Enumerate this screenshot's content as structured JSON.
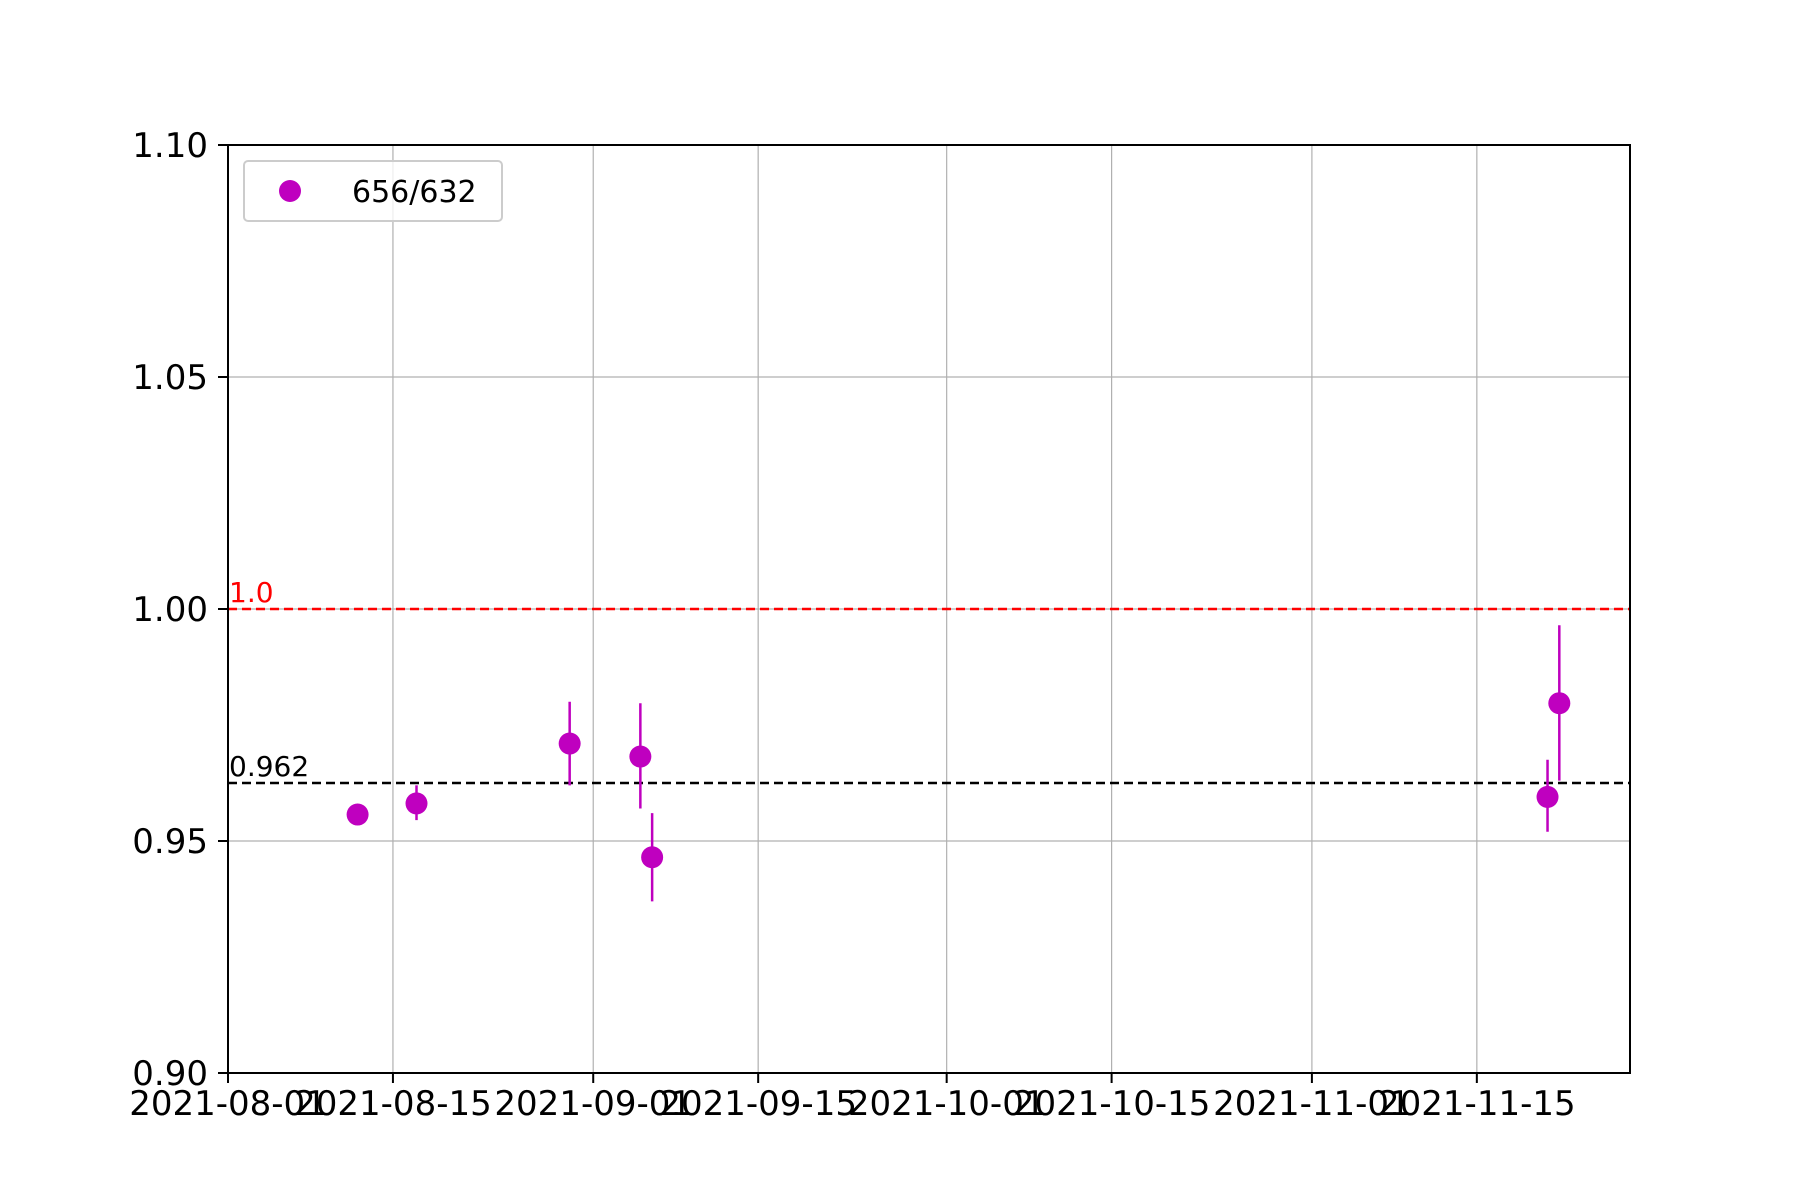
{
  "chart_data": {
    "type": "scatter",
    "title": "",
    "xlabel": "",
    "ylabel": "",
    "x_axis_type": "date",
    "xlim": [
      "2021-08-01",
      "2021-11-28"
    ],
    "ylim": [
      0.9,
      1.1
    ],
    "x_ticks": [
      {
        "date": "2021-08-01",
        "label": "2021-08-01"
      },
      {
        "date": "2021-08-15",
        "label": "2021-08-15"
      },
      {
        "date": "2021-09-01",
        "label": "2021-09-01"
      },
      {
        "date": "2021-09-15",
        "label": "2021-09-15"
      },
      {
        "date": "2021-10-01",
        "label": "2021-10-01"
      },
      {
        "date": "2021-10-15",
        "label": "2021-10-15"
      },
      {
        "date": "2021-11-01",
        "label": "2021-11-01"
      },
      {
        "date": "2021-11-15",
        "label": "2021-11-15"
      }
    ],
    "y_ticks": [
      {
        "value": 0.9,
        "label": "0.90"
      },
      {
        "value": 0.95,
        "label": "0.95"
      },
      {
        "value": 1.0,
        "label": "1.00"
      },
      {
        "value": 1.05,
        "label": "1.05"
      },
      {
        "value": 1.1,
        "label": "1.10"
      }
    ],
    "grid": true,
    "legend": {
      "position": "upper-left",
      "entries": [
        "656/632"
      ]
    },
    "series": [
      {
        "name": "656/632",
        "color": "#bf00bf",
        "points": [
          {
            "x": "2021-08-12",
            "y": 0.9557,
            "yerr_low": 0.9557,
            "yerr_high": 0.9557
          },
          {
            "x": "2021-08-17",
            "y": 0.9581,
            "yerr_low": 0.9545,
            "yerr_high": 0.962
          },
          {
            "x": "2021-08-30",
            "y": 0.971,
            "yerr_low": 0.962,
            "yerr_high": 0.98
          },
          {
            "x": "2021-09-05",
            "y": 0.9682,
            "yerr_low": 0.957,
            "yerr_high": 0.9797
          },
          {
            "x": "2021-09-06",
            "y": 0.9465,
            "yerr_low": 0.937,
            "yerr_high": 0.956
          },
          {
            "x": "2021-11-21",
            "y": 0.9595,
            "yerr_low": 0.952,
            "yerr_high": 0.9675
          },
          {
            "x": "2021-11-22",
            "y": 0.9797,
            "yerr_low": 0.963,
            "yerr_high": 0.9965
          }
        ]
      }
    ],
    "reference_lines": [
      {
        "y": 1.0,
        "label": "1.0",
        "color": "#ff0000",
        "style": "dashed"
      },
      {
        "y": 0.9625,
        "label": "0.962",
        "color": "#000000",
        "style": "dashed"
      }
    ]
  }
}
